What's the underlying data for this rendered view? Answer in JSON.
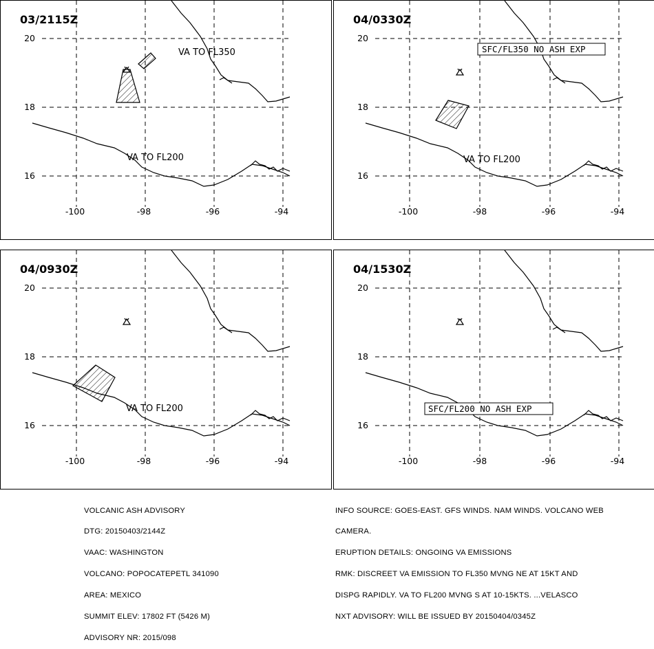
{
  "panels": [
    {
      "time": "03/2115Z",
      "labels": [
        "VA TO FL350",
        "VA TO FL200"
      ],
      "boxed_label": ""
    },
    {
      "time": "04/0330Z",
      "labels": [
        "VA TO FL200"
      ],
      "boxed_label": "SFC/FL350 NO ASH EXP"
    },
    {
      "time": "04/0930Z",
      "labels": [
        "VA TO FL200"
      ],
      "boxed_label": ""
    },
    {
      "time": "04/1530Z",
      "labels": [],
      "boxed_label": "SFC/FL200 NO ASH EXP"
    }
  ],
  "map": {
    "lat_ticks": [
      "20",
      "18",
      "16"
    ],
    "lon_ticks": [
      "-100",
      "-98",
      "-96",
      "-94"
    ],
    "volcano_icon": "volcano-icon",
    "ash_fill": "hatched"
  },
  "advisory_left": [
    "VOLCANIC ASH ADVISORY",
    "DTG: 20150403/2144Z",
    "VAAC: WASHINGTON",
    "VOLCANO: POPOCATEPETL 341090",
    "AREA: MEXICO",
    "SUMMIT ELEV: 17802 FT (5426 M)",
    "ADVISORY NR: 2015/098"
  ],
  "advisory_right": [
    "INFO SOURCE: GOES-EAST. GFS WINDS. NAM WINDS. VOLCANO WEB",
    "CAMERA.",
    "ERUPTION DETAILS: ONGOING VA EMISSIONS",
    "RMK: DISCREET VA EMISSION TO FL350 MVNG NE AT 15KT AND",
    "DISPG RAPIDLY. VA TO FL200 MVNG S AT 10-15KTS. ...VELASCO",
    "NXT ADVISORY: WILL BE ISSUED BY 20150404/0345Z"
  ]
}
